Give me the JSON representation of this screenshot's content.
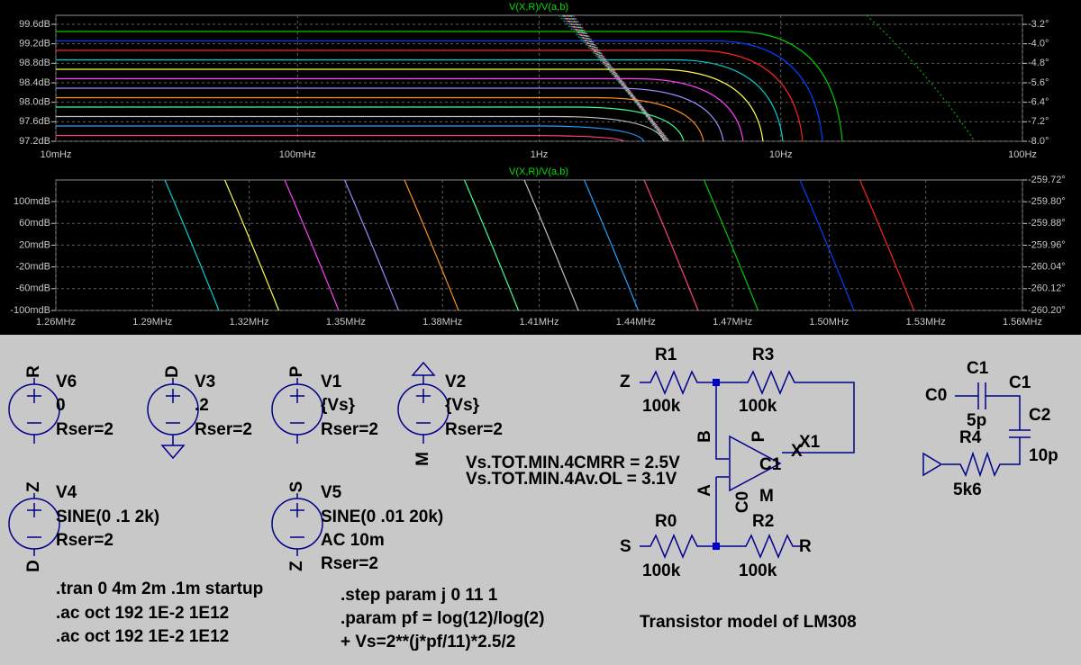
{
  "plots": [
    {
      "title": "V(X,R)/V(a,b)",
      "left_ticks": [
        "99.6dB",
        "99.2dB",
        "98.8dB",
        "98.4dB",
        "98.0dB",
        "97.6dB",
        "97.2dB"
      ],
      "right_ticks": [
        "-3.2°",
        "-4.0°",
        "-4.8°",
        "-5.6°",
        "-6.4°",
        "-7.2°",
        "-8.0°"
      ],
      "x_ticks": [
        "10mHz",
        "100mHz",
        "1Hz",
        "10Hz",
        "100Hz"
      ]
    },
    {
      "title": "V(X,R)/V(a,b)",
      "left_ticks": [
        "100mdB",
        "60mdB",
        "20mdB",
        "-20mdB",
        "-60mdB",
        "-100mdB"
      ],
      "right_ticks": [
        "-259.72°",
        "-259.80°",
        "-259.88°",
        "-259.96°",
        "-260.04°",
        "-260.12°",
        "-260.20°"
      ],
      "x_ticks": [
        "1.26MHz",
        "1.29MHz",
        "1.32MHz",
        "1.35MHz",
        "1.38MHz",
        "1.41MHz",
        "1.44MHz",
        "1.47MHz",
        "1.50MHz",
        "1.53MHz",
        "1.56MHz"
      ]
    }
  ],
  "schematic": {
    "labels": [
      "R",
      "V6",
      "0",
      "Rser=2",
      "D",
      "V3",
      ".2",
      "Rser=2",
      "P",
      "V1",
      "{Vs}",
      "Rser=2",
      "V2",
      "{Vs}",
      "Rser=2",
      "M",
      "Z",
      "V4",
      "SINE(0 .1 2k)",
      "Rser=2",
      "D",
      "S",
      "V5",
      "SINE(0 .01 20k)",
      "AC 10m",
      "Rser=2",
      "Z",
      "Vs.TOT.MIN.4CMRR = 2.5V",
      "Vs.TOT.MIN.4Av.OL = 3.1V",
      ".tran 0 4m 2m .1m startup",
      ".ac oct 192 1E-2 1E12",
      ".ac oct 192 1E-2 1E12",
      ".step param j 0 11 1",
      ".param pf = log(12)/log(2)",
      "+ Vs=2**(j*pf/11)*2.5/2",
      "Transistor model of LM308",
      "R1",
      "Z",
      "100k",
      "R3",
      "100k",
      "B",
      "P",
      "X1",
      "X",
      "C1",
      "A",
      "C0",
      "M",
      "R0",
      "R2",
      "S",
      "R",
      "100k",
      "100k",
      "C1",
      "C0",
      "C1",
      "5p",
      "C2",
      "R4",
      "10p",
      "5k6"
    ]
  }
}
